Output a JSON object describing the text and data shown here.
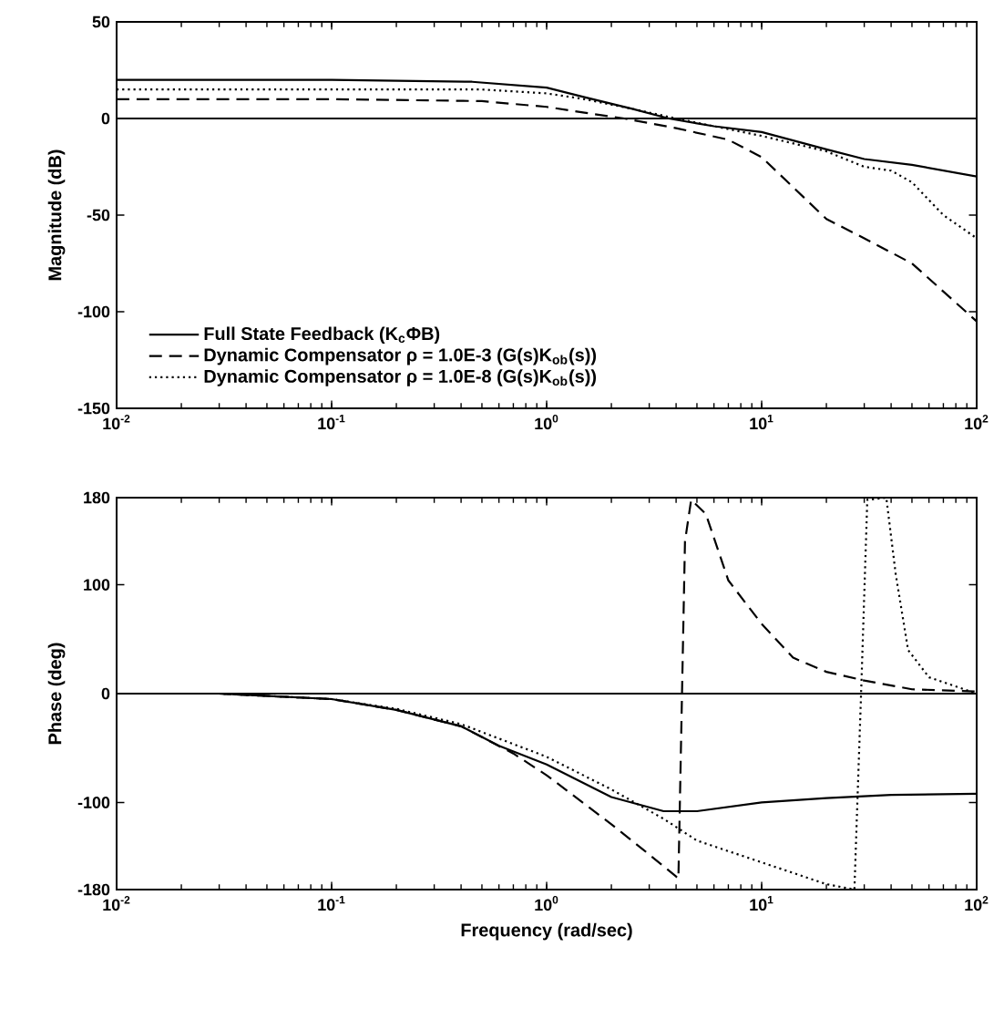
{
  "chart_data": [
    {
      "type": "line",
      "ylabel": "Magnitude (dB)",
      "log": "x",
      "xlim": [
        0.01,
        100
      ],
      "ylim": [
        -150,
        50
      ],
      "xticks": [
        {
          "value": 0.01,
          "label": "10$^{-2}$"
        },
        {
          "value": 0.1,
          "label": "10$^{-1}$"
        },
        {
          "value": 1,
          "label": "10$^{0}$"
        },
        {
          "value": 10,
          "label": "10$^{1}$"
        },
        {
          "value": 100,
          "label": "10$^{2}$"
        }
      ],
      "yticks": [
        -150,
        -100,
        -50,
        0,
        50
      ],
      "legend": "bottom left",
      "ref_lines": [
        {
          "axis": "y",
          "value": 0,
          "color": "#000000"
        }
      ],
      "series": [
        {
          "name": "Full State Feedback (K$_{c}$ΦB)",
          "color": "#000000",
          "line_style": "solid",
          "x": [
            0.01,
            0.1,
            0.45,
            1,
            1.5,
            2.5,
            3.7,
            6,
            10,
            20,
            30,
            50,
            100
          ],
          "values": [
            20,
            20,
            19,
            16,
            11,
            5,
            0,
            -4,
            -7,
            -16,
            -21,
            -24,
            -30
          ]
        },
        {
          "name": "Dynamic Compensator  ρ = 1.0E-3  (G(s)K$_{ob}$(s))",
          "color": "#000000",
          "line_style": "dashed",
          "x": [
            0.01,
            0.1,
            0.5,
            1,
            1.5,
            2.3,
            4,
            7,
            10,
            20,
            30,
            50,
            100
          ],
          "values": [
            10,
            10,
            9,
            6,
            3,
            0,
            -5,
            -11,
            -20,
            -52,
            -62,
            -75,
            -105
          ]
        },
        {
          "name": "Dynamic Compensator  ρ = 1.0E-8  (G(s)K$_{ob}$(s))",
          "color": "#000000",
          "line_style": "dotted",
          "x": [
            0.01,
            0.1,
            0.5,
            1,
            1.5,
            2.5,
            4,
            6,
            10,
            20,
            30,
            40,
            50,
            70,
            100
          ],
          "values": [
            15,
            15,
            15,
            13,
            10,
            5,
            0,
            -4,
            -9,
            -17,
            -25,
            -27,
            -33,
            -50,
            -62
          ]
        }
      ]
    },
    {
      "type": "line",
      "xlabel": "Frequency (rad/sec)",
      "ylabel": "Phase (deg)",
      "log": "x",
      "xlim": [
        0.01,
        100
      ],
      "ylim": [
        -180,
        180
      ],
      "xticks": [
        {
          "value": 0.01,
          "label": "10$^{-2}$"
        },
        {
          "value": 0.1,
          "label": "10$^{-1}$"
        },
        {
          "value": 1,
          "label": "10$^{0}$"
        },
        {
          "value": 10,
          "label": "10$^{1}$"
        },
        {
          "value": 100,
          "label": "10$^{2}$"
        }
      ],
      "yticks": [
        -180,
        -100,
        0,
        100,
        180
      ],
      "ref_lines": [
        {
          "axis": "y",
          "value": 0,
          "color": "#000000"
        }
      ],
      "series": [
        {
          "color": "#000000",
          "line_style": "solid",
          "x": [
            0.01,
            0.03,
            0.1,
            0.2,
            0.4,
            0.6,
            1,
            2,
            3.5,
            5,
            10,
            20,
            40,
            100
          ],
          "values": [
            0,
            0,
            -5,
            -15,
            -30,
            -48,
            -65,
            -95,
            -108,
            -108,
            -100,
            -96,
            -93,
            -92
          ]
        },
        {
          "color": "#000000",
          "line_style": "dashed",
          "x": [
            0.01,
            0.03,
            0.1,
            0.2,
            0.4,
            0.7,
            1,
            2,
            2.8,
            4.0,
            4.1,
            4.4,
            4.7,
            5.5,
            7,
            10,
            14,
            20,
            30,
            50,
            100
          ],
          "values": [
            0,
            0,
            -5,
            -15,
            -30,
            -55,
            -75,
            -120,
            -143,
            -168,
            -170,
            140,
            178,
            165,
            104,
            64,
            33,
            20,
            12,
            4,
            2
          ]
        },
        {
          "color": "#000000",
          "line_style": "dotted",
          "x": [
            0.01,
            0.03,
            0.1,
            0.2,
            0.4,
            1,
            2,
            3.5,
            5,
            10,
            20,
            27,
            29,
            31,
            38,
            42,
            48,
            60,
            100
          ],
          "values": [
            0,
            0,
            -5,
            -14,
            -28,
            -58,
            -88,
            -115,
            -135,
            -155,
            -175,
            -180,
            0,
            178,
            180,
            110,
            40,
            15,
            0
          ]
        }
      ]
    }
  ]
}
